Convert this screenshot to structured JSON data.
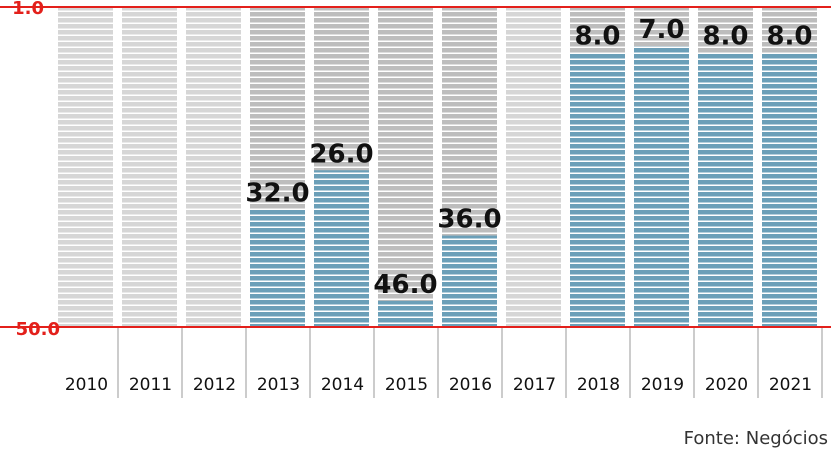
{
  "chart_data": {
    "type": "bar",
    "categories": [
      "2010",
      "2011",
      "2012",
      "2013",
      "2014",
      "2015",
      "2016",
      "2017",
      "2018",
      "2019",
      "2020",
      "2021"
    ],
    "values": [
      null,
      null,
      null,
      32.0,
      26.0,
      46.0,
      36.0,
      null,
      8.0,
      7.0,
      8.0,
      8.0
    ],
    "value_labels": [
      "",
      "",
      "",
      "32.0",
      "26.0",
      "46.0",
      "36.0",
      "",
      "8.0",
      "7.0",
      "8.0",
      "8.0"
    ],
    "y_axis": {
      "top_label": "1.0",
      "bottom_label": "50.0",
      "range": [
        1,
        50
      ],
      "inverted": true
    },
    "grid": false,
    "colors": {
      "value_bar": "#6b9fb8",
      "track_with_value": "#bdbdbd",
      "track_empty": "#d6d6d6",
      "stripe": "#ffffff",
      "axis_line": "#e3201b",
      "separator": "#9a9a9a",
      "text": "#111111"
    },
    "source": "Fonte: Negócios"
  }
}
